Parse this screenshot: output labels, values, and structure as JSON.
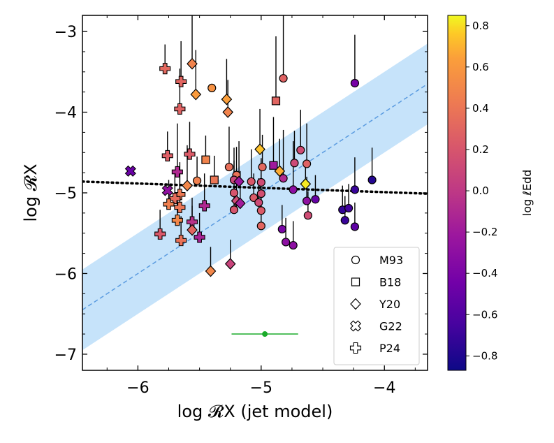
{
  "chart_data": {
    "type": "scatter",
    "xlabel": "log 𝓡X (jet model)",
    "ylabel": "log 𝓡X",
    "xlim": [
      -6.45,
      -3.65
    ],
    "ylim": [
      -7.2,
      -2.8
    ],
    "xticks": [
      -6,
      -5,
      -4
    ],
    "yticks": [
      -3,
      -4,
      -5,
      -6,
      -7
    ],
    "xtick_labels": [
      "−6",
      "−5",
      "−4"
    ],
    "ytick_labels": [
      "−3",
      "−4",
      "−5",
      "−6",
      "−7"
    ],
    "colorbar": {
      "label": "log ℓEdd",
      "range": [
        -0.87,
        0.85
      ],
      "ticks": [
        0.8,
        0.6,
        0.4,
        0.2,
        0.0,
        -0.2,
        -0.4,
        -0.6,
        -0.8
      ],
      "tick_labels": [
        "0.8",
        "0.6",
        "0.4",
        "0.2",
        "0.0",
        "−0.2",
        "−0.4",
        "−0.6",
        "−0.8"
      ]
    },
    "colors": {
      "band": "#c6e3fa",
      "identity_line": "#5a9be0",
      "fit_line": "#000000",
      "errbar_example": "#1aab2a"
    },
    "legend": {
      "position": "bottom-right",
      "entries": [
        {
          "marker": "circle",
          "label": "M93"
        },
        {
          "marker": "square",
          "label": "B18"
        },
        {
          "marker": "diamond",
          "label": "Y20"
        },
        {
          "marker": "x",
          "label": "G22"
        },
        {
          "marker": "plus",
          "label": "P24"
        }
      ]
    },
    "identity_line": {
      "slope": 1.0,
      "intercept": 0.0,
      "scatter": 0.5
    },
    "fit_line": {
      "x0": -6.45,
      "y0": -4.86,
      "x1": -3.65,
      "y1": -5.01
    },
    "example_error": {
      "x": -4.97,
      "y": -6.75,
      "xerr": 0.27
    },
    "points": [
      {
        "x": -5.78,
        "y": -3.46,
        "c": 0.32,
        "m": "plus",
        "err": [
          0,
          0.3
        ]
      },
      {
        "x": -5.56,
        "y": -3.4,
        "c": 0.48,
        "m": "diamond",
        "err": [
          0,
          0.75
        ]
      },
      {
        "x": -5.65,
        "y": -3.62,
        "c": 0.3,
        "m": "plus",
        "err": [
          0,
          0.5
        ]
      },
      {
        "x": -5.53,
        "y": -3.78,
        "c": 0.62,
        "m": "diamond",
        "err": [
          0,
          0.55
        ]
      },
      {
        "x": -5.4,
        "y": -3.7,
        "c": 0.56,
        "m": "circle",
        "err": [
          0,
          0.0
        ]
      },
      {
        "x": -5.66,
        "y": -3.96,
        "c": 0.28,
        "m": "plus",
        "err": [
          0,
          0.5
        ]
      },
      {
        "x": -5.28,
        "y": -3.84,
        "c": 0.64,
        "m": "diamond",
        "err": [
          0,
          0.5
        ]
      },
      {
        "x": -5.27,
        "y": -4.0,
        "c": 0.48,
        "m": "diamond",
        "err": [
          0,
          0.4
        ]
      },
      {
        "x": -4.88,
        "y": -3.86,
        "c": 0.3,
        "m": "square",
        "err": [
          0,
          0.8
        ]
      },
      {
        "x": -4.82,
        "y": -3.58,
        "c": 0.28,
        "m": "circle",
        "err": [
          0,
          0.9
        ]
      },
      {
        "x": -4.24,
        "y": -3.64,
        "c": -0.42,
        "m": "circle",
        "err": [
          0,
          0.6
        ]
      },
      {
        "x": -6.06,
        "y": -4.73,
        "c": -0.48,
        "m": "x",
        "err": [
          0,
          0
        ]
      },
      {
        "x": -5.76,
        "y": -4.54,
        "c": 0.26,
        "m": "plus",
        "err": [
          0,
          0.3
        ]
      },
      {
        "x": -5.58,
        "y": -4.52,
        "c": 0.24,
        "m": "plus",
        "err": [
          0,
          0.4
        ]
      },
      {
        "x": -5.45,
        "y": -4.59,
        "c": 0.48,
        "m": "square",
        "err": [
          0,
          0.3
        ]
      },
      {
        "x": -5.68,
        "y": -4.74,
        "c": -0.1,
        "m": "plus",
        "err": [
          0,
          0.6
        ]
      },
      {
        "x": -5.26,
        "y": -4.68,
        "c": 0.36,
        "m": "circle",
        "err": [
          0,
          0.5
        ]
      },
      {
        "x": -5.2,
        "y": -4.78,
        "c": 0.38,
        "m": "circle",
        "err": [
          0,
          0.35
        ]
      },
      {
        "x": -5.01,
        "y": -4.46,
        "c": 0.74,
        "m": "diamond",
        "err": [
          0,
          0.5
        ]
      },
      {
        "x": -4.99,
        "y": -4.68,
        "c": 0.32,
        "m": "circle",
        "err": [
          0,
          0.4
        ]
      },
      {
        "x": -4.9,
        "y": -4.66,
        "c": -0.2,
        "m": "square",
        "err": [
          0,
          0.6
        ]
      },
      {
        "x": -4.85,
        "y": -4.73,
        "c": 0.68,
        "m": "diamond",
        "err": [
          0,
          0.4
        ]
      },
      {
        "x": -4.73,
        "y": -4.63,
        "c": 0.12,
        "m": "circle",
        "err": [
          0,
          0.4
        ]
      },
      {
        "x": -4.68,
        "y": -4.47,
        "c": 0.14,
        "m": "circle",
        "err": [
          0,
          0.5
        ]
      },
      {
        "x": -4.63,
        "y": -4.64,
        "c": 0.28,
        "m": "circle",
        "err": [
          0,
          0.5
        ]
      },
      {
        "x": -5.6,
        "y": -4.91,
        "c": 0.5,
        "m": "diamond",
        "err": [
          0,
          0.5
        ]
      },
      {
        "x": -5.52,
        "y": -4.85,
        "c": 0.46,
        "m": "circle",
        "err": [
          0,
          0.3
        ]
      },
      {
        "x": -5.38,
        "y": -4.84,
        "c": 0.4,
        "m": "square",
        "err": [
          0,
          0.3
        ]
      },
      {
        "x": -5.22,
        "y": -4.84,
        "c": 0.1,
        "m": "circle",
        "err": [
          0,
          0.4
        ]
      },
      {
        "x": -5.18,
        "y": -4.86,
        "c": -0.22,
        "m": "diamond",
        "err": [
          0,
          0.5
        ]
      },
      {
        "x": -5.08,
        "y": -4.86,
        "c": 0.22,
        "m": "circle",
        "err": [
          0,
          0.4
        ]
      },
      {
        "x": -5.0,
        "y": -4.87,
        "c": 0.14,
        "m": "circle",
        "err": [
          0,
          0.3
        ]
      },
      {
        "x": -4.82,
        "y": -4.82,
        "c": -0.1,
        "m": "circle",
        "err": [
          0,
          0.6
        ]
      },
      {
        "x": -4.74,
        "y": -4.96,
        "c": -0.3,
        "m": "circle",
        "err": [
          0,
          0.6
        ]
      },
      {
        "x": -4.64,
        "y": -4.89,
        "c": 0.82,
        "m": "diamond",
        "err": [
          0,
          0.3
        ]
      },
      {
        "x": -4.24,
        "y": -4.96,
        "c": -0.7,
        "m": "circle",
        "err": [
          0,
          0.4
        ]
      },
      {
        "x": -4.1,
        "y": -4.84,
        "c": -0.78,
        "m": "circle",
        "err": [
          0,
          0.4
        ]
      },
      {
        "x": -5.76,
        "y": -4.97,
        "c": -0.28,
        "m": "x",
        "err": [
          0,
          0
        ]
      },
      {
        "x": -5.66,
        "y": -5.02,
        "c": 0.42,
        "m": "plus",
        "err": [
          0,
          0.4
        ]
      },
      {
        "x": -5.7,
        "y": -5.07,
        "c": 0.34,
        "m": "plus",
        "err": [
          0,
          0.3
        ]
      },
      {
        "x": -5.22,
        "y": -5.0,
        "c": 0.2,
        "m": "circle",
        "err": [
          0,
          0.4
        ]
      },
      {
        "x": -5.06,
        "y": -5.06,
        "c": 0.24,
        "m": "circle",
        "err": [
          0,
          0.3
        ]
      },
      {
        "x": -5.02,
        "y": -5.12,
        "c": 0.12,
        "m": "circle",
        "err": [
          0,
          0.3
        ]
      },
      {
        "x": -5.2,
        "y": -5.1,
        "c": 0.14,
        "m": "diamond",
        "err": [
          0,
          0.4
        ]
      },
      {
        "x": -5.17,
        "y": -5.13,
        "c": -0.18,
        "m": "diamond",
        "err": [
          0,
          0.4
        ]
      },
      {
        "x": -5.0,
        "y": -5.01,
        "c": 0.16,
        "m": "circle",
        "err": [
          0,
          0.4
        ]
      },
      {
        "x": -4.63,
        "y": -5.1,
        "c": -0.28,
        "m": "circle",
        "err": [
          0,
          0.3
        ]
      },
      {
        "x": -4.56,
        "y": -5.08,
        "c": -0.5,
        "m": "circle",
        "err": [
          0,
          0.3
        ]
      },
      {
        "x": -4.34,
        "y": -5.21,
        "c": -0.72,
        "m": "circle",
        "err": [
          0,
          0.3
        ]
      },
      {
        "x": -4.29,
        "y": -5.19,
        "c": -0.66,
        "m": "circle",
        "err": [
          0,
          0.3
        ]
      },
      {
        "x": -4.32,
        "y": -5.34,
        "c": -0.7,
        "m": "circle",
        "err": [
          0,
          0.3
        ]
      },
      {
        "x": -4.24,
        "y": -5.42,
        "c": -0.54,
        "m": "circle",
        "err": [
          0,
          0.3
        ]
      },
      {
        "x": -5.75,
        "y": -5.14,
        "c": 0.46,
        "m": "plus",
        "err": [
          0,
          0.3
        ]
      },
      {
        "x": -5.66,
        "y": -5.18,
        "c": 0.4,
        "m": "plus",
        "err": [
          0,
          0.4
        ]
      },
      {
        "x": -5.46,
        "y": -5.16,
        "c": -0.1,
        "m": "plus",
        "err": [
          0,
          0.4
        ]
      },
      {
        "x": -5.22,
        "y": -5.21,
        "c": 0.2,
        "m": "circle",
        "err": [
          0,
          0.3
        ]
      },
      {
        "x": -5.0,
        "y": -5.22,
        "c": 0.24,
        "m": "circle",
        "err": [
          0,
          0.3
        ]
      },
      {
        "x": -4.62,
        "y": -5.28,
        "c": 0.14,
        "m": "circle",
        "err": [
          0,
          0.3
        ]
      },
      {
        "x": -5.56,
        "y": -5.36,
        "c": -0.04,
        "m": "plus",
        "err": [
          0,
          0.3
        ]
      },
      {
        "x": -5.56,
        "y": -5.46,
        "c": 0.3,
        "m": "diamond",
        "err": [
          0,
          0.3
        ]
      },
      {
        "x": -5.68,
        "y": -5.34,
        "c": 0.5,
        "m": "plus",
        "err": [
          0,
          0.3
        ]
      },
      {
        "x": -5.0,
        "y": -5.41,
        "c": 0.3,
        "m": "circle",
        "err": [
          0,
          0.3
        ]
      },
      {
        "x": -4.83,
        "y": -5.45,
        "c": -0.4,
        "m": "circle",
        "err": [
          0,
          0.3
        ]
      },
      {
        "x": -5.82,
        "y": -5.51,
        "c": 0.22,
        "m": "plus",
        "err": [
          0,
          0.3
        ]
      },
      {
        "x": -5.5,
        "y": -5.55,
        "c": -0.14,
        "m": "plus",
        "err": [
          0,
          0.3
        ]
      },
      {
        "x": -5.65,
        "y": -5.59,
        "c": 0.38,
        "m": "plus",
        "err": [
          0,
          0.3
        ]
      },
      {
        "x": -4.8,
        "y": -5.61,
        "c": -0.3,
        "m": "circle",
        "err": [
          0,
          0.3
        ]
      },
      {
        "x": -4.74,
        "y": -5.65,
        "c": -0.3,
        "m": "circle",
        "err": [
          0,
          0.3
        ]
      },
      {
        "x": -5.41,
        "y": -5.97,
        "c": 0.5,
        "m": "diamond",
        "err": [
          0,
          0.3
        ]
      },
      {
        "x": -5.25,
        "y": -5.88,
        "c": 0.08,
        "m": "diamond",
        "err": [
          0,
          0.3
        ]
      }
    ]
  }
}
